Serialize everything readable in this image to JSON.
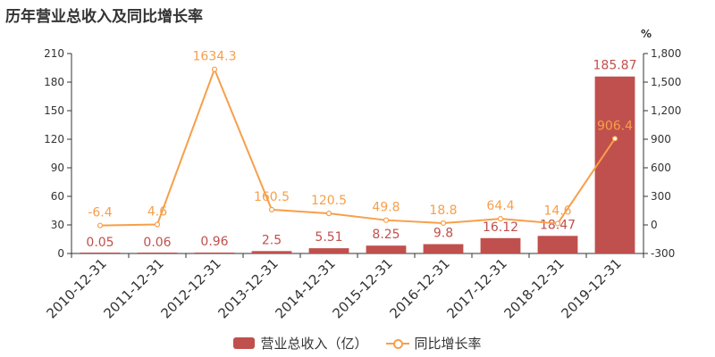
{
  "title": "历年营业总收入及同比增长率",
  "chart_data": {
    "type": "bar+line",
    "categories": [
      "2010-12-31",
      "2011-12-31",
      "2012-12-31",
      "2013-12-31",
      "2014-12-31",
      "2015-12-31",
      "2016-12-31",
      "2017-12-31",
      "2018-12-31",
      "2019-12-31"
    ],
    "series": [
      {
        "name": "营业总收入（亿）",
        "type": "bar",
        "axis": "left",
        "color": "#c0504d",
        "values": [
          0.05,
          0.06,
          0.96,
          2.5,
          5.51,
          8.25,
          9.8,
          16.12,
          18.47,
          185.87
        ],
        "labels": [
          "0.05",
          "0.06",
          "0.96",
          "2.5",
          "5.51",
          "8.25",
          "9.8",
          "16.12",
          "18.47",
          "185.87"
        ]
      },
      {
        "name": "同比增长率",
        "type": "line",
        "axis": "right",
        "color": "#f79f4a",
        "values": [
          -6.4,
          4.6,
          1634.3,
          160.5,
          120.5,
          49.8,
          18.8,
          64.4,
          14.6,
          906.4
        ],
        "labels": [
          "-6.4",
          "4.6",
          "1634.3",
          "160.5",
          "120.5",
          "49.8",
          "18.8",
          "64.4",
          "14.6",
          "906.4"
        ]
      }
    ],
    "y_left": {
      "ylim": [
        0,
        210
      ],
      "ticks": [
        0,
        30,
        60,
        90,
        120,
        150,
        180,
        210
      ],
      "tick_labels": [
        "0",
        "30",
        "60",
        "90",
        "120",
        "150",
        "180",
        "210"
      ]
    },
    "y_right": {
      "unit": "%",
      "ylim": [
        -300,
        1800
      ],
      "ticks": [
        -300,
        0,
        300,
        600,
        900,
        1200,
        1500,
        1800
      ],
      "tick_labels": [
        "-300",
        "0",
        "300",
        "600",
        "900",
        "1,200",
        "1,500",
        "1,800"
      ]
    },
    "grid": false,
    "legend_position": "bottom"
  }
}
